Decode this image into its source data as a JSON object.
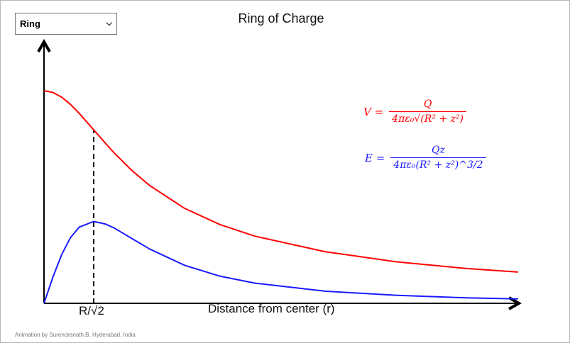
{
  "selector": {
    "value": "Ring"
  },
  "title": "Ring of Charge",
  "equations": {
    "V": {
      "lhs": "V =",
      "num": "Q",
      "den": "4πε₀√(R² + z²)",
      "color": "#ff0000"
    },
    "E": {
      "lhs": "E =",
      "num": "Qz",
      "den": "4πε₀(R² + z²)^3/2",
      "den_main": "4πε₀(R² + z²)",
      "den_exp": "3/2",
      "color": "#1a1aff"
    }
  },
  "credit": "Animation by Surendranath.B. Hyderabad, India",
  "chart_data": {
    "type": "line",
    "title": "Ring of Charge",
    "xlabel": "Distance from center (r)",
    "ylabel": "",
    "x_units": "R",
    "xlim": [
      0,
      6.75
    ],
    "ylim": [
      0,
      1
    ],
    "marker": {
      "x": 0.7071,
      "label": "R/√2"
    },
    "x": [
      0,
      0.125,
      0.25,
      0.375,
      0.5,
      0.7071,
      0.875,
      1,
      1.25,
      1.5,
      2,
      2.5,
      3,
      4,
      5,
      6,
      6.75
    ],
    "series": [
      {
        "name": "V",
        "color": "#ff0000",
        "values": [
          1,
          0.992,
          0.97,
          0.936,
          0.894,
          0.816,
          0.753,
          0.707,
          0.625,
          0.555,
          0.447,
          0.371,
          0.316,
          0.243,
          0.196,
          0.164,
          0.147
        ]
      },
      {
        "name": "E",
        "color": "#1a1aff",
        "values": [
          0,
          0.122,
          0.228,
          0.308,
          0.358,
          0.385,
          0.373,
          0.354,
          0.305,
          0.256,
          0.179,
          0.128,
          0.095,
          0.057,
          0.038,
          0.026,
          0.021
        ]
      }
    ]
  }
}
